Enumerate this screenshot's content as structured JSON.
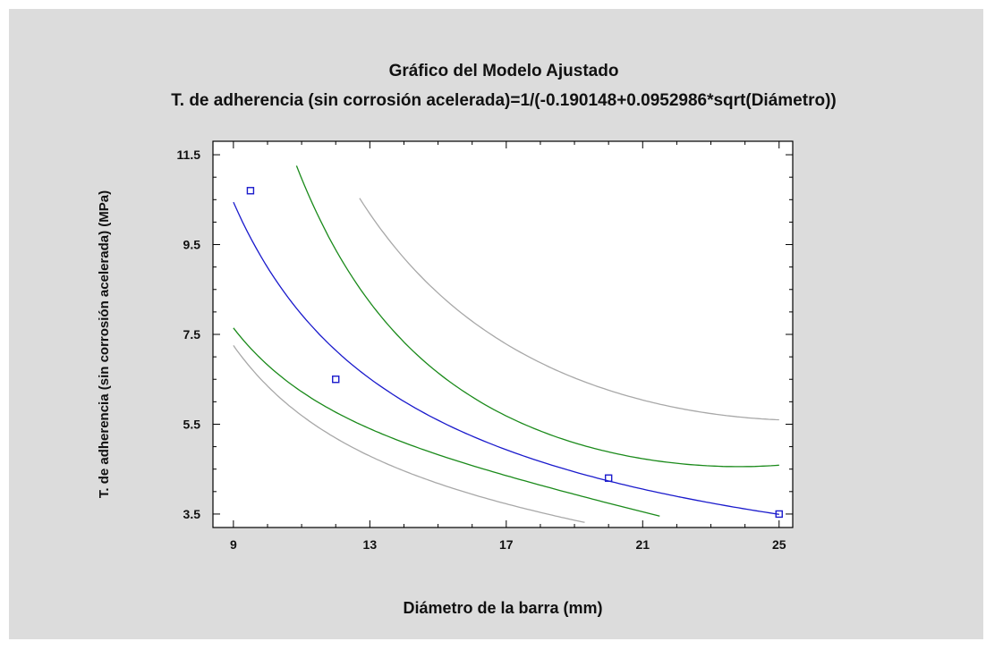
{
  "chart_data": {
    "type": "line",
    "title": "Gráfico del Modelo Ajustado",
    "subtitle": "T. de adherencia (sin corrosión acelerada)=1/(-0.190148+0.0952986*sqrt(Diámetro))",
    "xlabel": "Diámetro de la barra (mm)",
    "ylabel": "T. de adherencia (sin corrosión acelerada) (MPa)",
    "xlim": [
      8.4,
      25.4
    ],
    "ylim": [
      3.2,
      11.8
    ],
    "xticks": [
      "9",
      "13",
      "17",
      "21",
      "25"
    ],
    "yticks": [
      "3.5",
      "5.5",
      "7.5",
      "9.5",
      "11.5"
    ],
    "model": {
      "a": -0.190148,
      "b": 0.0952986
    },
    "series": [
      {
        "role": "fit",
        "color": "#1a1acc",
        "x_range": [
          9,
          25
        ]
      },
      {
        "role": "confidence-upper",
        "color": "#1a8a1a",
        "x_range": [
          10.85,
          25
        ]
      },
      {
        "role": "confidence-lower",
        "color": "#1a8a1a",
        "x_range": [
          9,
          21.5
        ]
      },
      {
        "role": "prediction-upper",
        "color": "#a8a8a8",
        "x_range": [
          12.7,
          25
        ]
      },
      {
        "role": "prediction-lower",
        "color": "#a8a8a8",
        "x_range": [
          9,
          19.3
        ]
      }
    ],
    "points": [
      {
        "x": 9.5,
        "y": 10.7
      },
      {
        "x": 12.0,
        "y": 6.5
      },
      {
        "x": 20.0,
        "y": 4.3
      },
      {
        "x": 25.0,
        "y": 3.5
      }
    ],
    "grid": false,
    "legend": "none"
  }
}
